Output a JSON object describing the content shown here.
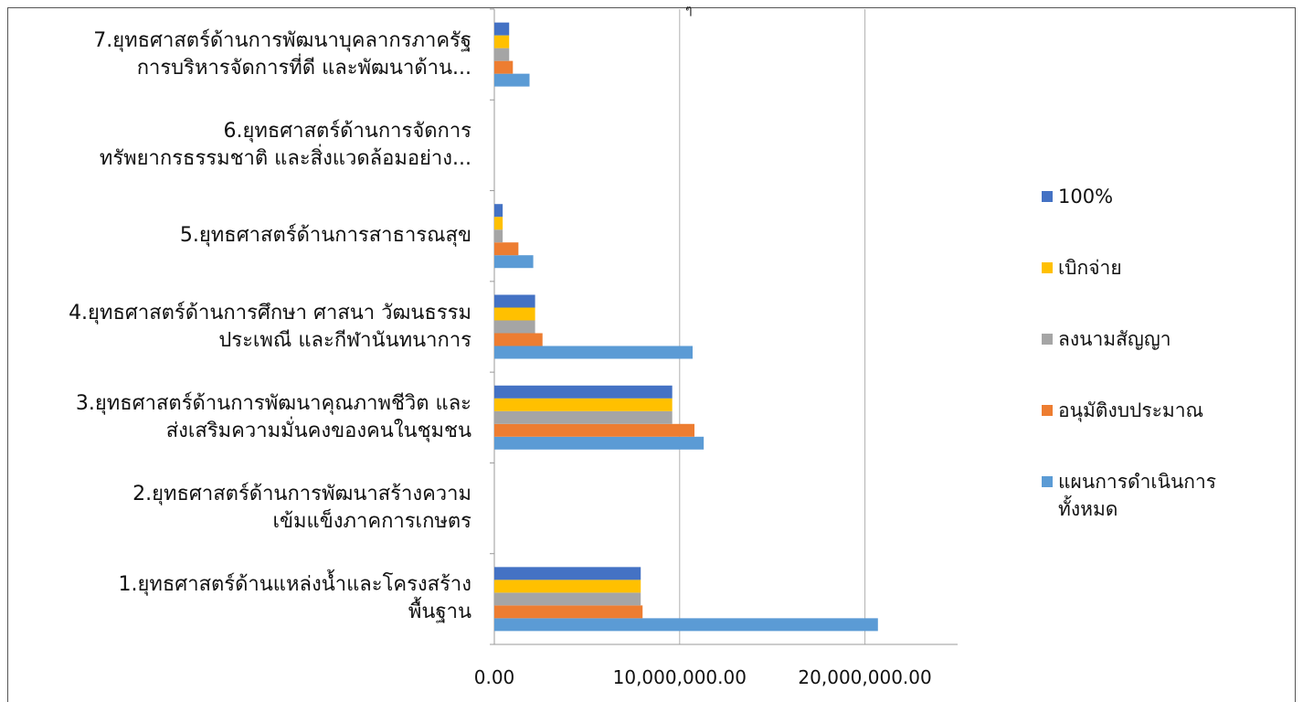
{
  "chart_data": {
    "type": "bar",
    "orientation": "horizontal",
    "categories": [
      "1.ยุทธศาสตร์ด้านแหล่งน้ำและโครงสร้าง\nพื้นฐาน",
      "2.ยุทธศาสตร์ด้านการพัฒนาสร้างความ\nเข้มแข็งภาคการเกษตร",
      "3.ยุทธศาสตร์ด้านการพัฒนาคุณภาพชีวิต และ\nส่งเสริมความมั่นคงของคนในชุมชน",
      "4.ยุทธศาสตร์ด้านการศึกษา ศาสนา วัฒนธรรม\nประเพณี และกีฬานันทนาการ",
      "5.ยุทธศาสตร์ด้านการสาธารณสุข",
      "6.ยุทธศาสตร์ด้านการจัดการ\nทรัพยากรธรรมชาติ และสิ่งแวดล้อมอย่าง...",
      "7.ยุทธศาสตร์ด้านการพัฒนาบุคลากรภาครัฐ\nการบริหารจัดการที่ดี และพัฒนาด้าน..."
    ],
    "series": [
      {
        "name": "แผนการดำเนินการ\nทั้งหมด",
        "color": "#5b9bd5",
        "values": [
          20700000,
          0,
          11300000,
          10700000,
          2100000,
          0,
          1900000
        ]
      },
      {
        "name": "อนุมัติงบประมาณ",
        "color": "#ed7d31",
        "values": [
          8000000,
          0,
          10800000,
          2600000,
          1300000,
          0,
          1000000
        ]
      },
      {
        "name": "ลงนามสัญญา",
        "color": "#a5a5a5",
        "values": [
          7900000,
          0,
          9600000,
          2200000,
          450000,
          0,
          800000
        ]
      },
      {
        "name": "เบิกจ่าย",
        "color": "#ffc000",
        "values": [
          7900000,
          0,
          9600000,
          2200000,
          450000,
          0,
          800000
        ]
      },
      {
        "name": "100%",
        "color": "#4472c4",
        "values": [
          7900000,
          0,
          9600000,
          2200000,
          450000,
          0,
          800000
        ]
      }
    ],
    "legend_order": [
      4,
      3,
      2,
      1,
      0
    ],
    "x_ticks": [
      "0.00",
      "10,000,000.00",
      "20,000,000.00"
    ],
    "x_tick_values": [
      0,
      10000000,
      20000000
    ],
    "xlim": [
      0,
      25000000
    ],
    "grid": true,
    "legend_position": "right",
    "title": "",
    "xlabel": "",
    "ylabel": ""
  },
  "header": {
    "top_mark": "ๆ"
  }
}
